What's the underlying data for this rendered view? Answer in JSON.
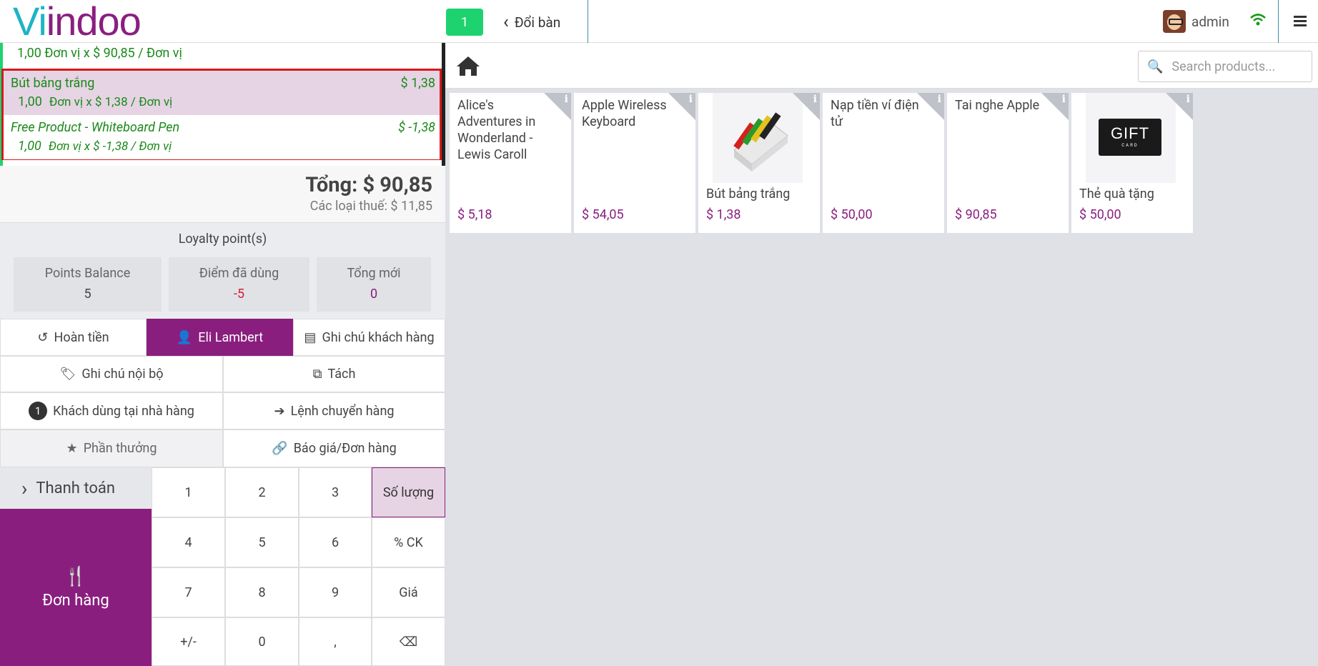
{
  "header": {
    "logo_text_part1": "Vi",
    "logo_text_part2": "ind",
    "logo_text_part3": "oo",
    "table_number": "1",
    "change_table_label": "Đổi bàn",
    "user_name": "admin"
  },
  "order": {
    "partial_line_info": "1,00  Đơn vị x $ 90,85 / Đơn vị",
    "lines": [
      {
        "name": "Bút bảng trắng",
        "price": "$ 1,38",
        "qty": "1,00",
        "detail": "Đơn vị x $ 1,38 / Đơn vị"
      },
      {
        "name": "Free Product - Whiteboard Pen",
        "price": "$ -1,38",
        "qty": "1,00",
        "detail": "Đơn vị x $ -1,38 / Đơn vị"
      }
    ],
    "total": "Tổng: $ 90,85",
    "taxes": "Các loại thuế: $ 11,85"
  },
  "loyalty": {
    "title": "Loyalty point(s)",
    "balance_label": "Points Balance",
    "balance_value": "5",
    "used_label": "Điểm đã dùng",
    "used_value": "-5",
    "new_total_label": "Tổng mới",
    "new_total_value": "0"
  },
  "controls": {
    "refund": "Hoàn tiền",
    "customer": "Eli Lambert",
    "customer_note": "Ghi chú khách hàng",
    "internal_note": "Ghi chú nội bộ",
    "split": "Tách",
    "guests_count": "1",
    "guests": "Khách dùng tại nhà hàng",
    "transfer": "Lệnh chuyển hàng",
    "reward": "Phần thưởng",
    "quotation": "Báo giá/Đơn hàng"
  },
  "numpad": {
    "payment": "Thanh toán",
    "order": "Đơn hàng",
    "keys": [
      "1",
      "2",
      "3",
      "Số lượng",
      "4",
      "5",
      "6",
      "% CK",
      "7",
      "8",
      "9",
      "Giá",
      "+/-",
      "0",
      ",",
      "⌫"
    ]
  },
  "products": {
    "search_placeholder": "Search products...",
    "items": [
      {
        "name": "Alice's Adventures in Wonderland - Lewis Caroll",
        "price": "$ 5,18"
      },
      {
        "name": "Apple Wireless Keyboard",
        "price": "$ 54,05"
      },
      {
        "name": "Bút bảng trắng",
        "price": "$ 1,38"
      },
      {
        "name": "Nạp tiền ví điện tử",
        "price": "$ 50,00"
      },
      {
        "name": "Tai nghe Apple",
        "price": "$ 90,85"
      },
      {
        "name": "Thẻ quà tặng",
        "price": "$ 50,00"
      }
    ],
    "gift_card_text": "GIFT",
    "gift_card_sub": "CARD"
  },
  "colors": {
    "brand": "#8a1e7f",
    "accent": "#1fb3c6",
    "success": "#1ed36f",
    "selected": "#d61a1a"
  }
}
